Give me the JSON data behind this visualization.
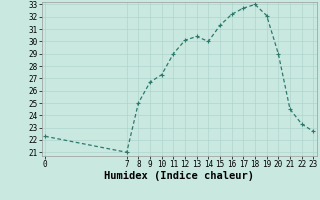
{
  "xlabel": "Humidex (Indice chaleur)",
  "x_values": [
    0,
    7,
    8,
    9,
    10,
    11,
    12,
    13,
    14,
    15,
    16,
    17,
    18,
    19,
    20,
    21,
    22,
    23
  ],
  "y_values": [
    22.3,
    21.0,
    25.0,
    26.7,
    27.3,
    29.0,
    30.1,
    30.4,
    30.0,
    31.3,
    32.2,
    32.7,
    33.0,
    32.1,
    29.0,
    24.5,
    23.3,
    22.7
  ],
  "line_color": "#2d7a6a",
  "marker_color": "#2d7a6a",
  "bg_color": "#c8e8e0",
  "grid_color": "#b0d4cc",
  "ylim_min": 21,
  "ylim_max": 33,
  "yticks": [
    21,
    22,
    23,
    24,
    25,
    26,
    27,
    28,
    29,
    30,
    31,
    32,
    33
  ],
  "xticks": [
    0,
    7,
    8,
    9,
    10,
    11,
    12,
    13,
    14,
    15,
    16,
    17,
    18,
    19,
    20,
    21,
    22,
    23
  ],
  "xlim_min": -0.3,
  "xlim_max": 23.3,
  "tick_fontsize": 5.5,
  "xlabel_fontsize": 7.5,
  "marker_size": 2.5,
  "linewidth": 0.9
}
